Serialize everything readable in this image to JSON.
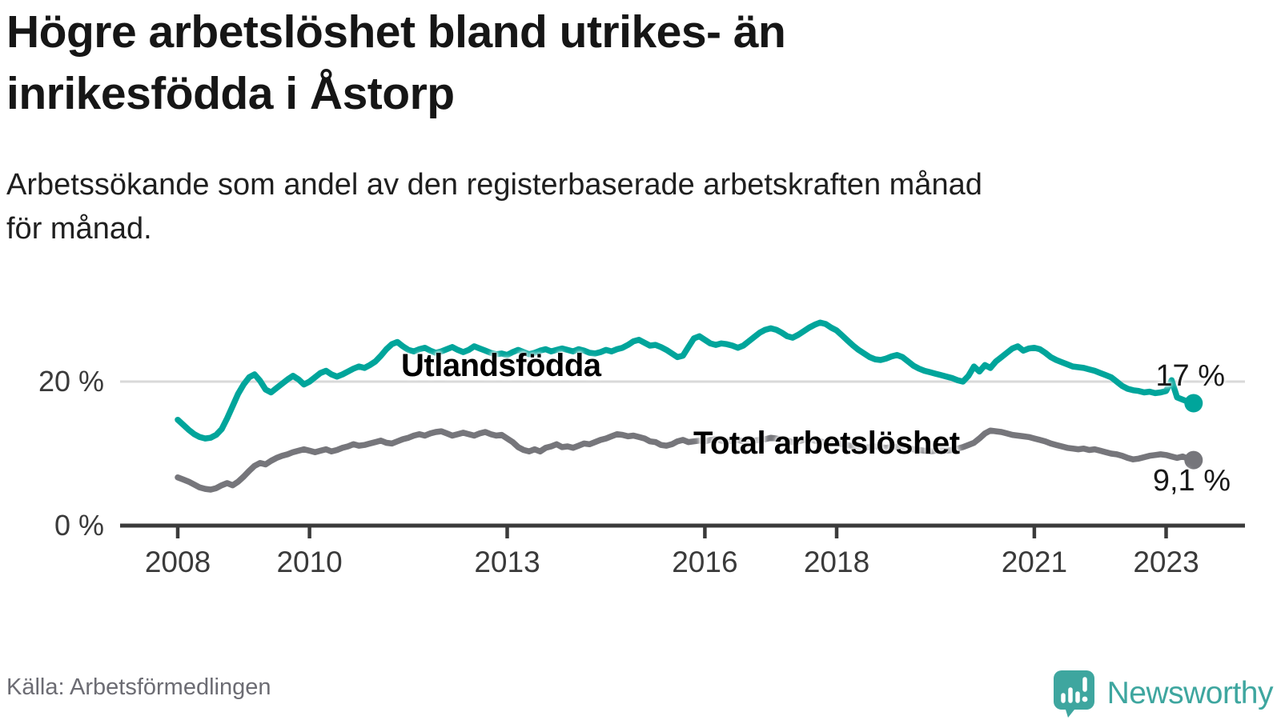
{
  "header": {
    "title_lines": [
      "Högre arbetslöshet bland utrikes- än",
      "inrikesfödda i Åstorp"
    ],
    "subtitle_lines": [
      "Arbetssökande som andel av den registerbaserade arbetskraften månad",
      "för månad."
    ]
  },
  "footer": {
    "source": "Källa: Arbetsförmedlingen",
    "brand": "Newsworthy",
    "brand_icon": "newsworthy-speech-bubble-bar-chart-icon"
  },
  "colors": {
    "foreign_born_line": "#00a59b",
    "total_line": "#76767b",
    "gridline": "#d9d9d9",
    "axis": "#3b3b3b",
    "text": "#161616",
    "muted_text": "#6c6c73",
    "brand_teal": "#3ea69f"
  },
  "chart_data": {
    "type": "line",
    "unit": "%",
    "frequency": "monthly",
    "x_start": "2008-01",
    "x_end": "2023-06",
    "x_ticks": [
      2008,
      2010,
      2013,
      2016,
      2018,
      2021,
      2023
    ],
    "y_ticks": [
      {
        "value": 20,
        "label": "20 %"
      },
      {
        "value": 0,
        "label": "0 %"
      }
    ],
    "ylim": [
      0,
      30
    ],
    "grid": "horizontal line at 20 % only, x-axis at 0 %",
    "legend_position": "inline labels on lines, end values at right",
    "series": [
      {
        "name": "Utlandsfödda",
        "color": "#00a59b",
        "end_value": 17,
        "end_label": "17 %",
        "values": [
          14.7,
          14.0,
          13.3,
          12.7,
          12.3,
          12.1,
          12.2,
          12.6,
          13.4,
          14.9,
          16.6,
          18.3,
          19.6,
          20.6,
          21.0,
          20.1,
          18.9,
          18.5,
          19.1,
          19.7,
          20.3,
          20.8,
          20.3,
          19.6,
          20.0,
          20.6,
          21.2,
          21.5,
          21.0,
          20.7,
          21.0,
          21.4,
          21.8,
          22.1,
          21.9,
          22.3,
          22.8,
          23.6,
          24.5,
          25.2,
          25.5,
          24.9,
          24.4,
          24.2,
          24.5,
          24.7,
          24.3,
          24.0,
          24.2,
          24.5,
          24.8,
          24.4,
          24.1,
          24.4,
          24.9,
          24.6,
          24.3,
          24.0,
          23.8,
          23.9,
          23.7,
          24.1,
          24.4,
          24.1,
          23.8,
          24.0,
          24.3,
          24.5,
          24.2,
          24.4,
          24.6,
          24.4,
          24.2,
          24.5,
          24.3,
          24.0,
          23.9,
          24.1,
          24.4,
          24.2,
          24.5,
          24.7,
          25.1,
          25.6,
          25.8,
          25.4,
          25.0,
          25.1,
          24.8,
          24.4,
          23.9,
          23.4,
          23.6,
          24.8,
          26.0,
          26.3,
          25.8,
          25.3,
          25.1,
          25.3,
          25.2,
          25.0,
          24.7,
          25.0,
          25.6,
          26.2,
          26.8,
          27.2,
          27.4,
          27.2,
          26.8,
          26.3,
          26.1,
          26.5,
          27.0,
          27.5,
          27.9,
          28.2,
          28.0,
          27.5,
          27.1,
          26.4,
          25.7,
          25.0,
          24.4,
          23.9,
          23.4,
          23.1,
          23.0,
          23.2,
          23.5,
          23.7,
          23.4,
          22.8,
          22.2,
          21.8,
          21.5,
          21.3,
          21.1,
          20.9,
          20.7,
          20.5,
          20.2,
          20.0,
          20.8,
          22.1,
          21.4,
          22.3,
          21.9,
          22.8,
          23.4,
          24.0,
          24.6,
          24.9,
          24.3,
          24.6,
          24.7,
          24.5,
          24.0,
          23.4,
          23.0,
          22.7,
          22.4,
          22.1,
          22.0,
          21.9,
          21.7,
          21.5,
          21.2,
          20.9,
          20.6,
          20.0,
          19.4,
          19.0,
          18.8,
          18.7,
          18.5,
          18.6,
          18.4,
          18.5,
          18.7,
          20.2,
          17.8,
          17.5,
          17.2,
          17.0
        ]
      },
      {
        "name": "Total arbetslöshet",
        "color": "#76767b",
        "end_value": 9.1,
        "end_label": "9,1 %",
        "values": [
          6.7,
          6.4,
          6.1,
          5.7,
          5.3,
          5.1,
          5.0,
          5.2,
          5.6,
          5.9,
          5.6,
          6.1,
          6.8,
          7.6,
          8.3,
          8.7,
          8.5,
          9.0,
          9.4,
          9.7,
          9.9,
          10.2,
          10.4,
          10.6,
          10.4,
          10.2,
          10.4,
          10.6,
          10.3,
          10.5,
          10.8,
          11.0,
          11.3,
          11.1,
          11.2,
          11.4,
          11.6,
          11.8,
          11.5,
          11.4,
          11.7,
          12.0,
          12.2,
          12.5,
          12.7,
          12.5,
          12.8,
          13.0,
          13.1,
          12.8,
          12.5,
          12.7,
          12.9,
          12.7,
          12.5,
          12.8,
          13.0,
          12.7,
          12.5,
          12.6,
          12.1,
          11.6,
          10.9,
          10.5,
          10.3,
          10.6,
          10.3,
          10.8,
          11.0,
          11.3,
          10.9,
          11.0,
          10.8,
          11.1,
          11.4,
          11.3,
          11.6,
          11.9,
          12.1,
          12.4,
          12.7,
          12.6,
          12.4,
          12.5,
          12.3,
          12.1,
          11.7,
          11.6,
          11.2,
          11.1,
          11.3,
          11.7,
          11.9,
          11.6,
          11.7,
          11.8,
          11.7,
          11.9,
          12.0,
          11.8,
          11.6,
          11.8,
          11.9,
          11.7,
          11.6,
          11.8,
          11.9,
          12.0,
          12.2,
          12.1,
          11.9,
          11.8,
          11.6,
          11.7,
          11.9,
          12.0,
          11.8,
          11.7,
          11.5,
          11.4,
          11.5,
          11.3,
          11.2,
          11.0,
          10.9,
          10.8,
          10.9,
          11.0,
          10.9,
          10.8,
          10.9,
          11.0,
          10.9,
          10.8,
          10.6,
          10.5,
          10.4,
          10.3,
          10.4,
          10.5,
          10.4,
          10.5,
          10.7,
          10.9,
          11.2,
          11.5,
          12.1,
          12.8,
          13.2,
          13.1,
          13.0,
          12.8,
          12.6,
          12.5,
          12.4,
          12.3,
          12.1,
          11.9,
          11.7,
          11.4,
          11.2,
          11.0,
          10.8,
          10.7,
          10.6,
          10.7,
          10.5,
          10.6,
          10.4,
          10.2,
          10.0,
          9.9,
          9.7,
          9.4,
          9.2,
          9.3,
          9.5,
          9.7,
          9.8,
          9.9,
          9.8,
          9.6,
          9.4,
          9.6,
          9.3,
          9.1
        ]
      }
    ]
  }
}
